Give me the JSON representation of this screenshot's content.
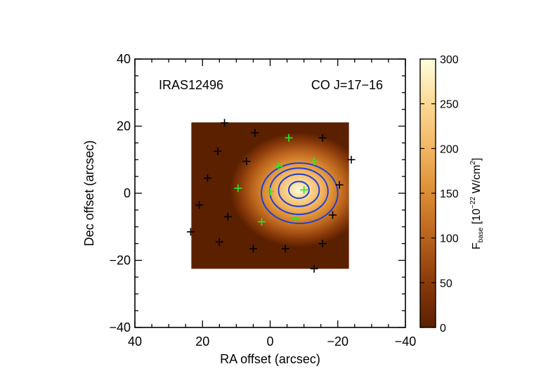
{
  "chart_data": {
    "type": "heatmap",
    "annotations": {
      "left": "IRAS12496",
      "right": "CO J=17−16"
    },
    "xlabel": "RA offset (arcsec)",
    "ylabel": "Dec offset (arcsec)",
    "xlim": [
      40,
      -40
    ],
    "ylim": [
      -40,
      40
    ],
    "x_ticks": [
      40,
      20,
      0,
      -20,
      -40
    ],
    "x_tick_labels": [
      "40",
      "20",
      "0",
      "−20",
      "−40"
    ],
    "y_ticks": [
      40,
      20,
      0,
      -20,
      -40
    ],
    "y_tick_labels": [
      "40",
      "20",
      "0",
      "−20",
      "−40"
    ],
    "map_extent": {
      "ra": [
        23.3,
        -23.3
      ],
      "dec": [
        -22.5,
        21.1
      ]
    },
    "peak": {
      "ra": -8.5,
      "dec": 1.0,
      "value": 300
    },
    "colorbar": {
      "range": [
        0,
        300
      ],
      "ticks": [
        0,
        50,
        100,
        150,
        200,
        250,
        300
      ],
      "tick_labels": [
        "0",
        "50",
        "100",
        "150",
        "200",
        "250",
        "300"
      ],
      "label_main": "F",
      "label_sub": "base",
      "label_unit_open": " [10",
      "label_exp1": "−22",
      "label_unit_mid": " W/cm",
      "label_exp2": "2",
      "label_unit_close": "]",
      "colors": [
        "#5a2000",
        "#8a3a0a",
        "#b8621c",
        "#dc8c32",
        "#f3b562",
        "#fbd995",
        "#ffffdd"
      ]
    },
    "contours": [
      {
        "rx": 11.3,
        "ry": 9.0,
        "cx": -8.7,
        "cy": 0.0
      },
      {
        "rx": 8.6,
        "ry": 6.9,
        "cx": -8.5,
        "cy": 0.6
      },
      {
        "rx": 6.0,
        "ry": 4.8,
        "cx": -8.5,
        "cy": 0.9
      },
      {
        "rx": 3.0,
        "ry": 2.5,
        "cx": -8.5,
        "cy": 1.0
      }
    ],
    "contour_color": "#1f3fd6",
    "markers_black": [
      [
        13.5,
        21.0
      ],
      [
        4.5,
        18.0
      ],
      [
        15.5,
        12.5
      ],
      [
        7.0,
        9.5
      ],
      [
        18.5,
        4.5
      ],
      [
        21.0,
        -3.5
      ],
      [
        12.5,
        -7.0
      ],
      [
        15.0,
        -14.5
      ],
      [
        5.0,
        -16.5
      ],
      [
        23.5,
        -11.5
      ],
      [
        -4.5,
        -16.5
      ],
      [
        -15.5,
        16.5
      ],
      [
        -24.0,
        10.0
      ],
      [
        -20.5,
        2.5
      ],
      [
        -18.5,
        -6.5
      ],
      [
        -15.5,
        -15.0
      ],
      [
        -13.0,
        -22.5
      ]
    ],
    "markers_green": [
      [
        -5.5,
        16.5
      ],
      [
        -13.0,
        9.5
      ],
      [
        -2.5,
        8.0
      ],
      [
        9.5,
        1.5
      ],
      [
        0.0,
        0.5
      ],
      [
        -10.0,
        1.0
      ],
      [
        2.5,
        -8.5
      ],
      [
        -7.5,
        -7.5
      ]
    ],
    "marker_colors": {
      "black": "#000000",
      "green": "#22ee22"
    }
  }
}
